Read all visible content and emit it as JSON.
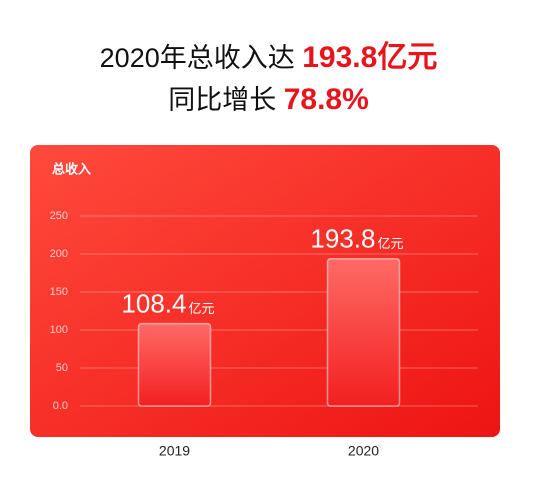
{
  "header": {
    "line1_text": "2020年总收入达",
    "line1_highlight": "193.8亿元",
    "line2_text": "同比增长",
    "line2_highlight": "78.8%"
  },
  "chart_data": {
    "type": "bar",
    "y_label": "总收入",
    "categories": [
      "2019",
      "2020"
    ],
    "values": [
      108.4,
      193.8
    ],
    "unit": "亿元",
    "color": "#ff5550",
    "ylim": [
      0,
      250
    ],
    "yticks": [
      {
        "value": 0,
        "label": "0.0"
      },
      50,
      100,
      150,
      200,
      250
    ],
    "grid": true
  }
}
